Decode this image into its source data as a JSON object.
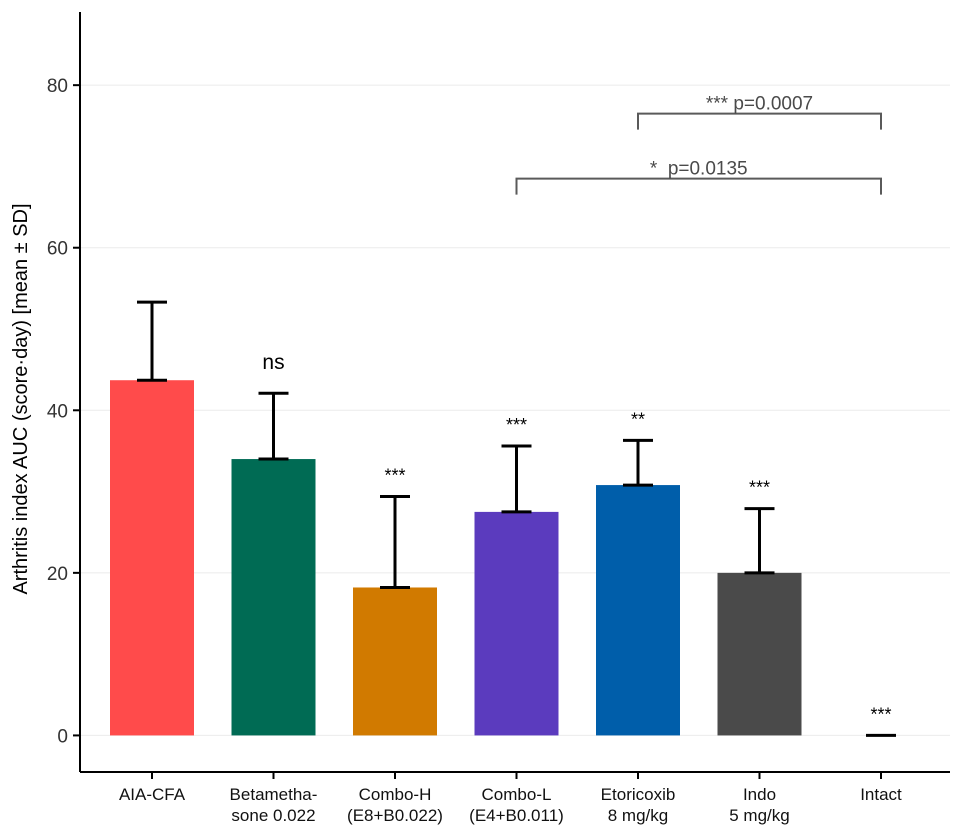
{
  "chart_data": {
    "type": "bar",
    "ylabel": "Arthritis index AUC (score·day) [mean ± SD]",
    "ylim": [
      -4.5,
      89
    ],
    "yticks": [
      0,
      20,
      40,
      60,
      80
    ],
    "grid": true,
    "categories": [
      [
        "AIA-CFA"
      ],
      [
        "Betametha-",
        "sone 0.022"
      ],
      [
        "Combo-H",
        "(E8+B0.022)"
      ],
      [
        "Combo-L",
        "(E4+B0.011)"
      ],
      [
        "Etoricoxib",
        "8 mg/kg"
      ],
      [
        "Indo",
        "5 mg/kg"
      ],
      [
        "Intact"
      ]
    ],
    "values": [
      43.7,
      34.0,
      18.2,
      27.5,
      30.8,
      20.0,
      0.0
    ],
    "errors": [
      9.6,
      8.1,
      11.2,
      8.1,
      5.5,
      7.9,
      0.0
    ],
    "colors": [
      "#FF4B4B",
      "#006B54",
      "#D17A00",
      "#5B3BBE",
      "#005EAA",
      "#4A4A4A",
      "#000000"
    ],
    "significance": [
      "",
      "ns",
      "***",
      "***",
      "**",
      "***",
      "***"
    ],
    "brackets": [
      {
        "from": 4,
        "to": 6,
        "y": 76.5,
        "label": "*** p=0.0007"
      },
      {
        "from": 3,
        "to": 6,
        "y": 68.5,
        "label": "*  p=0.0135"
      }
    ]
  }
}
